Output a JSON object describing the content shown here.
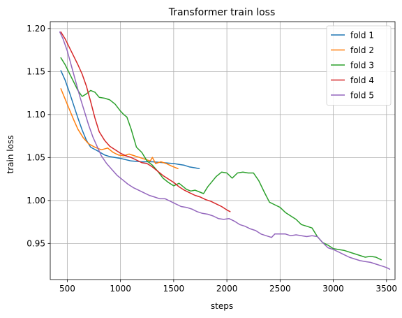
{
  "chart_data": {
    "type": "line",
    "title": "Transformer train loss",
    "xlabel": "steps",
    "ylabel": "train loss",
    "xlim": [
      340,
      3580
    ],
    "ylim": [
      0.908,
      1.208
    ],
    "xticks": [
      500,
      1000,
      1500,
      2000,
      2500,
      3000,
      3500
    ],
    "xtick_labels": [
      "500",
      "1000",
      "1500",
      "2000",
      "2500",
      "3000",
      "3500"
    ],
    "yticks": [
      0.95,
      1.0,
      1.05,
      1.1,
      1.15,
      1.2
    ],
    "ytick_labels": [
      "0.95",
      "1.00",
      "1.05",
      "1.10",
      "1.15",
      "1.20"
    ],
    "grid": true,
    "legend_position": "top-right",
    "series": [
      {
        "name": "fold 1",
        "color": "#1f77b4",
        "x": [
          440,
          480,
          520,
          560,
          600,
          640,
          680,
          720,
          780,
          850,
          900,
          1000,
          1100,
          1200,
          1300,
          1400,
          1500,
          1550,
          1600,
          1650,
          1700,
          1740
        ],
        "y": [
          1.151,
          1.14,
          1.126,
          1.111,
          1.096,
          1.082,
          1.07,
          1.062,
          1.058,
          1.053,
          1.051,
          1.049,
          1.046,
          1.045,
          1.045,
          1.044,
          1.043,
          1.042,
          1.041,
          1.039,
          1.038,
          1.037
        ]
      },
      {
        "name": "fold 2",
        "color": "#ff7f0e",
        "x": [
          440,
          480,
          520,
          560,
          600,
          650,
          700,
          760,
          820,
          880,
          930,
          980,
          1030,
          1080,
          1130,
          1180,
          1230,
          1280,
          1300,
          1330,
          1380,
          1430,
          1480,
          1540
        ],
        "y": [
          1.13,
          1.118,
          1.106,
          1.094,
          1.083,
          1.073,
          1.066,
          1.062,
          1.059,
          1.061,
          1.056,
          1.053,
          1.052,
          1.054,
          1.052,
          1.05,
          1.048,
          1.046,
          1.05,
          1.043,
          1.045,
          1.043,
          1.04,
          1.037
        ]
      },
      {
        "name": "fold 3",
        "color": "#2ca02c",
        "x": [
          440,
          480,
          520,
          560,
          600,
          640,
          680,
          720,
          760,
          800,
          850,
          900,
          950,
          1000,
          1030,
          1060,
          1100,
          1150,
          1200,
          1250,
          1300,
          1350,
          1400,
          1450,
          1500,
          1550,
          1580,
          1620,
          1660,
          1700,
          1740,
          1780,
          1820,
          1860,
          1900,
          1950,
          2000,
          2050,
          2100,
          2150,
          2200,
          2250,
          2300,
          2350,
          2400,
          2450,
          2500,
          2550,
          2600,
          2650,
          2700,
          2750,
          2800,
          2850,
          2900,
          2950,
          3000,
          3100,
          3200,
          3300,
          3350,
          3400,
          3450
        ],
        "y": [
          1.166,
          1.158,
          1.148,
          1.138,
          1.128,
          1.121,
          1.124,
          1.128,
          1.126,
          1.12,
          1.119,
          1.117,
          1.112,
          1.104,
          1.1,
          1.097,
          1.083,
          1.062,
          1.056,
          1.046,
          1.041,
          1.034,
          1.026,
          1.021,
          1.017,
          1.02,
          1.017,
          1.013,
          1.011,
          1.012,
          1.01,
          1.008,
          1.016,
          1.022,
          1.028,
          1.033,
          1.032,
          1.026,
          1.032,
          1.033,
          1.032,
          1.032,
          1.023,
          1.01,
          0.998,
          0.995,
          0.992,
          0.986,
          0.982,
          0.978,
          0.972,
          0.97,
          0.968,
          0.958,
          0.951,
          0.948,
          0.944,
          0.942,
          0.938,
          0.934,
          0.935,
          0.934,
          0.931
        ]
      },
      {
        "name": "fold 4",
        "color": "#d62728",
        "x": [
          440,
          480,
          520,
          560,
          600,
          640,
          680,
          720,
          760,
          800,
          850,
          900,
          950,
          1000,
          1050,
          1100,
          1150,
          1200,
          1250,
          1300,
          1350,
          1400,
          1450,
          1500,
          1550,
          1600,
          1650,
          1700,
          1750,
          1800,
          1850,
          1900,
          1950,
          2000,
          2030
        ],
        "y": [
          1.196,
          1.188,
          1.178,
          1.168,
          1.158,
          1.147,
          1.133,
          1.115,
          1.096,
          1.08,
          1.07,
          1.063,
          1.059,
          1.055,
          1.052,
          1.05,
          1.047,
          1.044,
          1.043,
          1.039,
          1.034,
          1.029,
          1.025,
          1.021,
          1.016,
          1.012,
          1.009,
          1.006,
          1.004,
          1.001,
          0.999,
          0.996,
          0.993,
          0.989,
          0.987
        ]
      },
      {
        "name": "fold 5",
        "color": "#9467bd",
        "x": [
          430,
          460,
          500,
          540,
          580,
          620,
          660,
          700,
          740,
          780,
          820,
          870,
          920,
          970,
          1020,
          1070,
          1120,
          1170,
          1220,
          1270,
          1320,
          1370,
          1420,
          1470,
          1520,
          1570,
          1620,
          1670,
          1720,
          1770,
          1820,
          1870,
          1920,
          1970,
          2020,
          2070,
          2120,
          2170,
          2220,
          2270,
          2320,
          2370,
          2420,
          2450,
          2500,
          2550,
          2600,
          2650,
          2700,
          2750,
          2800,
          2850,
          2900,
          2950,
          3000,
          3050,
          3100,
          3150,
          3200,
          3250,
          3300,
          3350,
          3400,
          3450,
          3500,
          3530
        ],
        "y": [
          1.196,
          1.188,
          1.174,
          1.156,
          1.138,
          1.12,
          1.104,
          1.088,
          1.074,
          1.063,
          1.052,
          1.043,
          1.036,
          1.029,
          1.024,
          1.019,
          1.015,
          1.012,
          1.009,
          1.006,
          1.004,
          1.002,
          1.002,
          0.999,
          0.996,
          0.993,
          0.992,
          0.99,
          0.987,
          0.985,
          0.984,
          0.982,
          0.979,
          0.978,
          0.979,
          0.976,
          0.972,
          0.97,
          0.967,
          0.965,
          0.961,
          0.959,
          0.957,
          0.961,
          0.961,
          0.961,
          0.959,
          0.96,
          0.959,
          0.958,
          0.959,
          0.958,
          0.951,
          0.945,
          0.943,
          0.94,
          0.937,
          0.934,
          0.932,
          0.93,
          0.929,
          0.928,
          0.926,
          0.924,
          0.922,
          0.92
        ]
      }
    ]
  }
}
